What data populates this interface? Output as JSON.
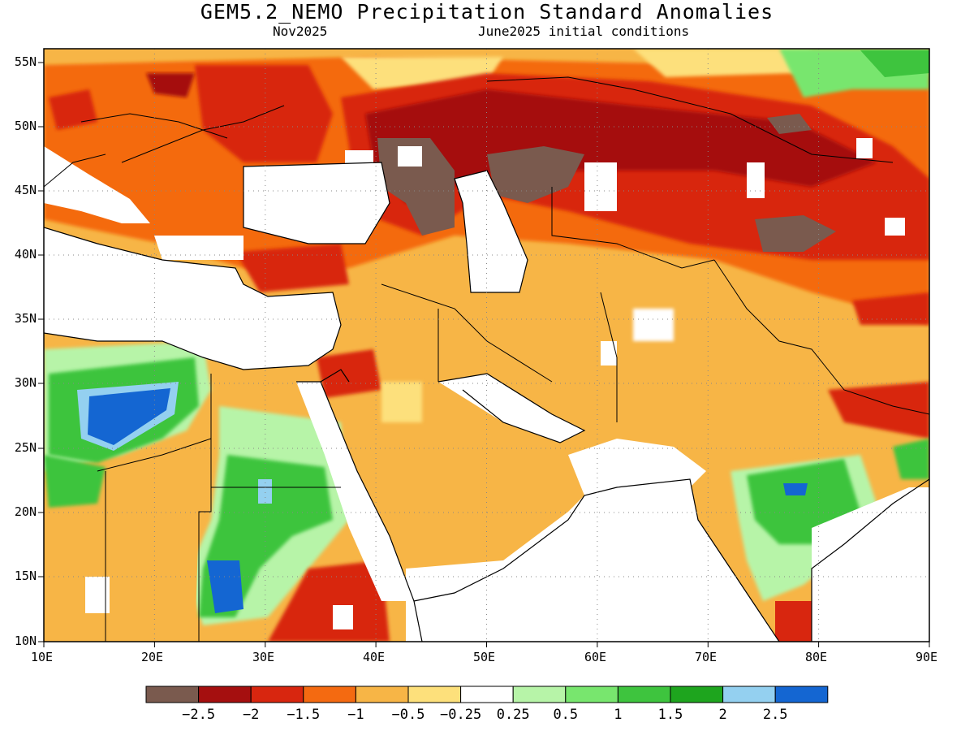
{
  "title": "GEM5.2_NEMO Precipitation Standard Anomalies",
  "subtitle_left": "Nov2025",
  "subtitle_right": "June2025 initial conditions",
  "lon_ticks": [
    "10E",
    "20E",
    "30E",
    "40E",
    "50E",
    "60E",
    "70E",
    "80E",
    "90E"
  ],
  "lat_ticks": [
    "55N",
    "50N",
    "45N",
    "40N",
    "35N",
    "30N",
    "25N",
    "20N",
    "15N",
    "10N"
  ],
  "colorbar": {
    "labels": [
      "−2.5",
      "−2",
      "−1.5",
      "−1",
      "−0.5",
      "−0.25",
      "0.25",
      "0.5",
      "1",
      "1.5",
      "2",
      "2.5"
    ],
    "colors": [
      "#7a5a4e",
      "#a50f0f",
      "#d8260f",
      "#f46a11",
      "#f7b546",
      "#fde07b",
      "#ffffff",
      "#b7f4a8",
      "#78e66e",
      "#3ec43e",
      "#1ea51e",
      "#94d0f0",
      "#1466d2"
    ]
  },
  "colors": {
    "land_default": "#f7b546"
  }
}
